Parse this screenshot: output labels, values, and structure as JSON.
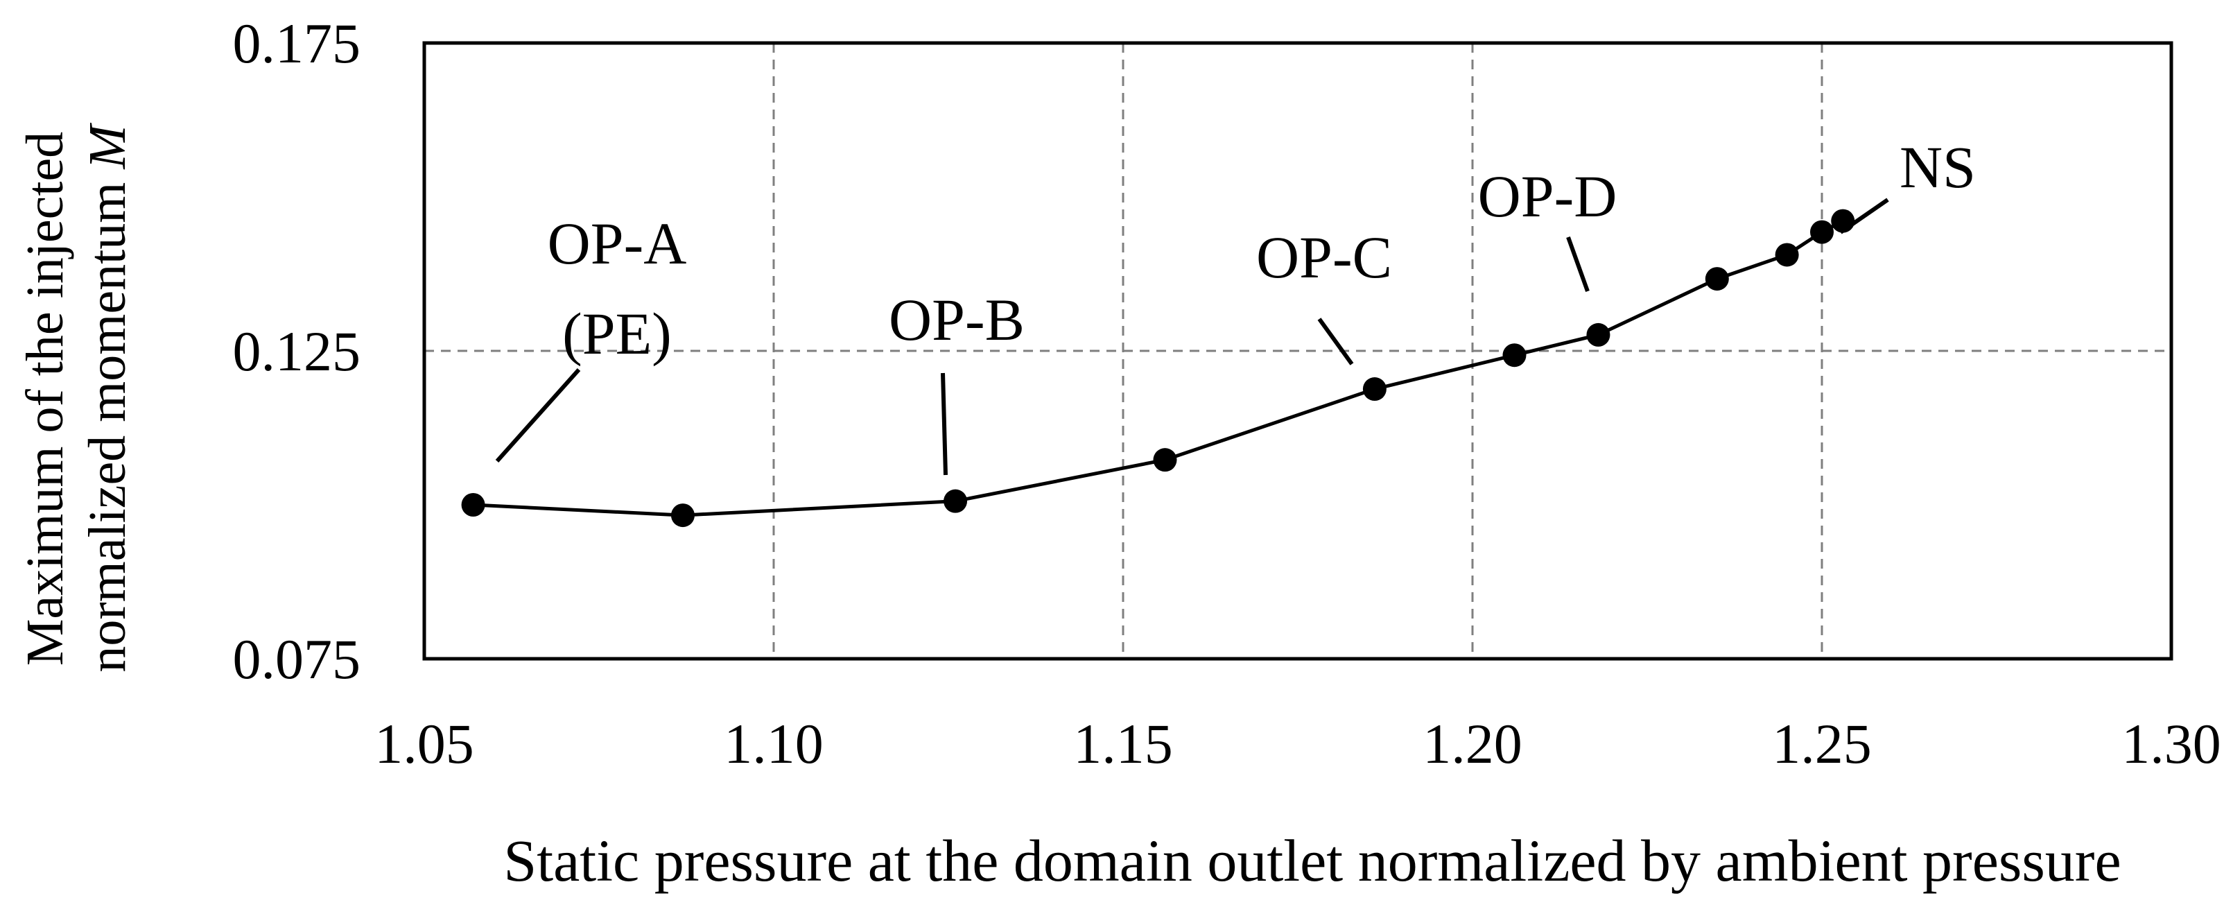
{
  "chart_data": {
    "type": "line",
    "title": "",
    "xlabel": "Static pressure at the domain outlet normalized by ambient pressure",
    "ylabel_line1": "Maximum of the injected",
    "ylabel_line2_text": "normalized momentum ",
    "ylabel_line2_symbol": "M",
    "xlim": [
      1.05,
      1.3
    ],
    "ylim": [
      0.075,
      0.175
    ],
    "x_ticks": [
      1.05,
      1.1,
      1.15,
      1.2,
      1.25,
      1.3
    ],
    "x_tick_labels": [
      "1.05",
      "1.10",
      "1.15",
      "1.20",
      "1.25",
      "1.30"
    ],
    "y_ticks": [
      0.075,
      0.125,
      0.175
    ],
    "y_tick_labels": [
      "0.075",
      "0.125",
      "0.175"
    ],
    "grid": true,
    "legend": "none",
    "series": [
      {
        "x": [
          1.057,
          1.087,
          1.126,
          1.156,
          1.186,
          1.206,
          1.218,
          1.235,
          1.245,
          1.25,
          1.253
        ],
        "y": [
          0.1,
          0.0983,
          0.1006,
          0.1073,
          0.1188,
          0.1243,
          0.1276,
          0.1367,
          0.1406,
          0.1443,
          0.1461
        ]
      }
    ],
    "annotations": [
      {
        "lines": [
          "OP-A",
          "(PE)"
        ],
        "point_index": 0
      },
      {
        "lines": [
          "OP-B"
        ],
        "point_index": 2
      },
      {
        "lines": [
          "OP-C"
        ],
        "point_index": 4
      },
      {
        "lines": [
          "OP-D"
        ],
        "point_index": 6
      },
      {
        "lines": [
          "NS"
        ],
        "point_index": 10
      }
    ]
  }
}
